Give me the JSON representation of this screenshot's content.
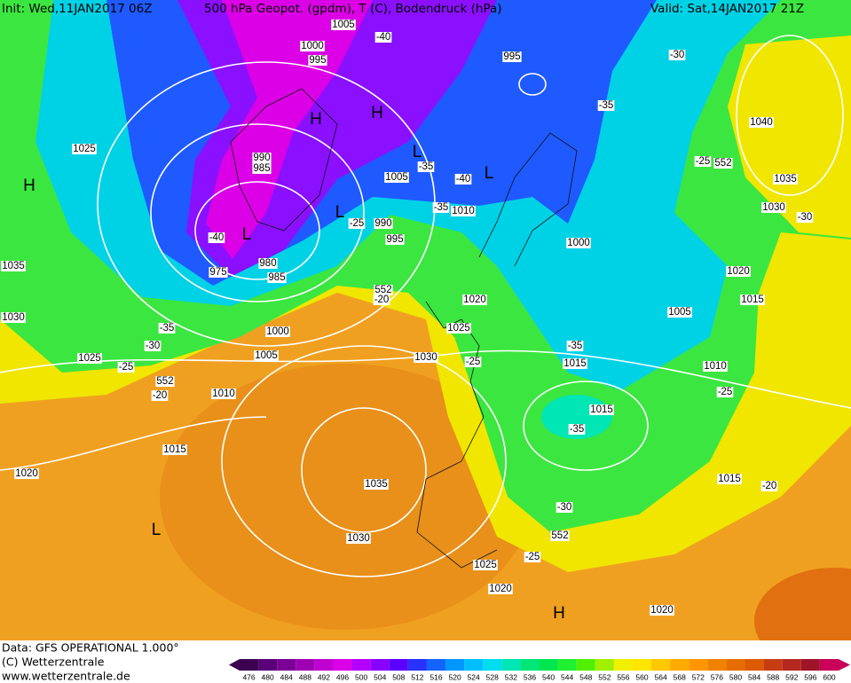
{
  "header": {
    "init": "Init: Wed,11JAN2017 06Z",
    "title": "500 hPa Geopot. (gpdm), T (C), Bodendruck (hPa)",
    "valid": "Valid: Sat,14JAN2017 21Z"
  },
  "footer": {
    "data": "Data: GFS OPERATIONAL 1.000°",
    "copyright": "(C) Wetterzentrale",
    "url": "www.wetterzentrale.de"
  },
  "legend": {
    "levels": [
      476,
      480,
      484,
      488,
      492,
      496,
      500,
      504,
      508,
      512,
      516,
      520,
      524,
      528,
      532,
      536,
      540,
      544,
      548,
      552,
      556,
      560,
      564,
      568,
      572,
      576,
      580,
      584,
      588,
      592,
      596,
      600
    ],
    "colors": [
      "#3c0050",
      "#5a0078",
      "#7a0096",
      "#a000b4",
      "#c000d0",
      "#dc00e6",
      "#b400ff",
      "#8a00ff",
      "#5a00ff",
      "#2832ff",
      "#1464ff",
      "#0096ff",
      "#00beff",
      "#00dcf0",
      "#00e6b4",
      "#00e678",
      "#00e650",
      "#1ef032",
      "#50f000",
      "#a0f000",
      "#f0f000",
      "#ffe600",
      "#ffc800",
      "#ffaa00",
      "#ff9600",
      "#f08200",
      "#e66e00",
      "#dc5a00",
      "#c83c14",
      "#b4281e",
      "#a01428",
      "#c8005a"
    ]
  },
  "map_labels": [
    "1025",
    "990",
    "985",
    "1000",
    "995",
    "1005",
    "-40",
    "995",
    "1005",
    "-35",
    "-40",
    "1010",
    "-35",
    "-25",
    "990",
    "995",
    "1000",
    "-35",
    "-30",
    "-25",
    "552",
    "1040",
    "1035",
    "1030",
    "-30",
    "1020",
    "1015",
    "1005",
    "-35",
    "1015",
    "1010",
    "-25",
    "1015",
    "-35",
    "1015",
    "-20",
    "1035",
    "1030",
    "1020",
    "975",
    "980",
    "985",
    "-40",
    "1000",
    "1005",
    "-35",
    "-30",
    "1025",
    "-25",
    "552",
    "-20",
    "1010",
    "1015",
    "552",
    "-20",
    "1020",
    "1025",
    "1030",
    "-25",
    "1035",
    "1030",
    "-30",
    "552",
    "-25",
    "1025",
    "1020",
    "1020"
  ],
  "pressure_centers": [
    "H",
    "L",
    "H",
    "H",
    "L",
    "L",
    "L",
    "L",
    "H"
  ]
}
